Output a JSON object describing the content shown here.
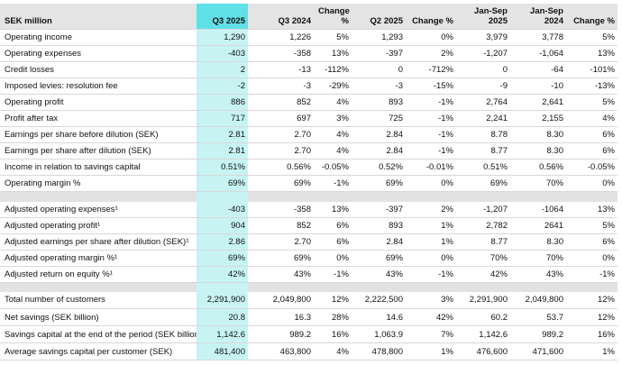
{
  "table": {
    "columns": [
      "SEK million",
      "Q3 2025",
      "Q3 2024",
      "Change %",
      "Q2 2025",
      "Change %",
      "Jan-Sep 2025",
      "Jan-Sep 2024",
      "Change %"
    ],
    "sections": [
      {
        "rows": [
          [
            "Operating income",
            "1,290",
            "1,226",
            "5%",
            "1,293",
            "0%",
            "3,979",
            "3,778",
            "5%"
          ],
          [
            "Operating expenses",
            "-403",
            "-358",
            "13%",
            "-397",
            "2%",
            "-1,207",
            "-1,064",
            "13%"
          ],
          [
            "Credit losses",
            "2",
            "-13",
            "-112%",
            "0",
            "-712%",
            "0",
            "-64",
            "-101%"
          ],
          [
            "Imposed levies: resolution fee",
            "-2",
            "-3",
            "-29%",
            "-3",
            "-15%",
            "-9",
            "-10",
            "-13%"
          ],
          [
            "Operating profit",
            "886",
            "852",
            "4%",
            "893",
            "-1%",
            "2,764",
            "2,641",
            "5%"
          ],
          [
            "Profit after tax",
            "717",
            "697",
            "3%",
            "725",
            "-1%",
            "2,241",
            "2,155",
            "4%"
          ],
          [
            "Earnings per share before dilution (SEK)",
            "2.81",
            "2.70",
            "4%",
            "2.84",
            "-1%",
            "8.78",
            "8.30",
            "6%"
          ],
          [
            "Earnings per share after dilution (SEK)",
            "2.81",
            "2.70",
            "4%",
            "2.84",
            "-1%",
            "8.77",
            "8.30",
            "6%"
          ],
          [
            "Income in relation to savings capital",
            "0.51%",
            "0.56%",
            "-0.05%",
            "0.52%",
            "-0.01%",
            "0.51%",
            "0.56%",
            "-0.05%"
          ],
          [
            "Operating margin %",
            "69%",
            "69%",
            "-1%",
            "69%",
            "0%",
            "69%",
            "70%",
            "0%"
          ]
        ]
      },
      {
        "rows": [
          [
            "Adjusted operating expenses¹",
            "-403",
            "-358",
            "13%",
            "-397",
            "2%",
            "-1,207",
            "-1064",
            "13%"
          ],
          [
            "Adjusted operating profit¹",
            "904",
            "852",
            "6%",
            "893",
            "1%",
            "2,782",
            "2641",
            "5%"
          ],
          [
            "Adjusted earnings per share after dilution (SEK)¹",
            "2.86",
            "2.70",
            "6%",
            "2.84",
            "1%",
            "8.77",
            "8.30",
            "6%"
          ],
          [
            "Adjusted operating margin %¹",
            "69%",
            "69%",
            "0%",
            "69%",
            "0%",
            "70%",
            "70%",
            "0%"
          ],
          [
            "Adjusted return on equity %¹",
            "42%",
            "43%",
            "-1%",
            "43%",
            "-1%",
            "42%",
            "43%",
            "-1%"
          ]
        ]
      },
      {
        "rows": [
          [
            "Total number of customers",
            "2,291,900",
            "2,049,800",
            "12%",
            "2,222,500",
            "3%",
            "2,291,900",
            "2,049,800",
            "12%"
          ],
          [
            "Net savings (SEK billion)",
            "20.8",
            "16.3",
            "28%",
            "14.6",
            "42%",
            "60.2",
            "53.7",
            "12%"
          ],
          [
            "Savings capital at the end of the period (SEK billion)",
            "1,142.6",
            "989.2",
            "16%",
            "1,063.9",
            "7%",
            "1,142.6",
            "989.2",
            "16%"
          ],
          [
            "Average savings capital per customer (SEK)",
            "481,400",
            "463,800",
            "4%",
            "478,800",
            "1%",
            "476,600",
            "471,600",
            "1%"
          ]
        ]
      }
    ]
  }
}
